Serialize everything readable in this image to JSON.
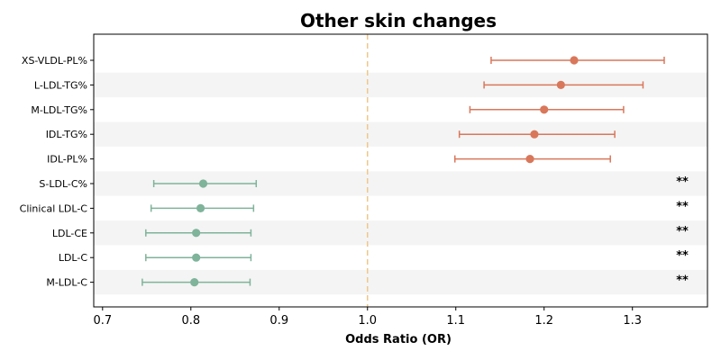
{
  "chart_data": {
    "type": "forest",
    "title": "Other skin changes",
    "xlabel": "Odds Ratio (OR)",
    "ylabel": "",
    "xlim": [
      0.69,
      1.385
    ],
    "xticks": [
      "0.7",
      "0.8",
      "0.9",
      "1.0",
      "1.1",
      "1.2",
      "1.3"
    ],
    "reference_line": 1.0,
    "colors": {
      "positive": "#d9775b",
      "negative": "#7fb39a",
      "reference": "#f0c78a",
      "band": "#f4f4f4"
    },
    "rows": [
      {
        "label": "XS-VLDL-PL%",
        "or": 1.234,
        "lo": 1.14,
        "hi": 1.336,
        "sig": ""
      },
      {
        "label": "L-LDL-TG%",
        "or": 1.219,
        "lo": 1.132,
        "hi": 1.312,
        "sig": ""
      },
      {
        "label": "M-LDL-TG%",
        "or": 1.2,
        "lo": 1.116,
        "hi": 1.29,
        "sig": ""
      },
      {
        "label": "IDL-TG%",
        "or": 1.189,
        "lo": 1.104,
        "hi": 1.28,
        "sig": ""
      },
      {
        "label": "IDL-PL%",
        "or": 1.184,
        "lo": 1.099,
        "hi": 1.275,
        "sig": ""
      },
      {
        "label": "S-LDL-C%",
        "or": 0.814,
        "lo": 0.758,
        "hi": 0.874,
        "sig": "**"
      },
      {
        "label": "Clinical LDL-C",
        "or": 0.811,
        "lo": 0.755,
        "hi": 0.871,
        "sig": "**"
      },
      {
        "label": "LDL-CE",
        "or": 0.806,
        "lo": 0.749,
        "hi": 0.868,
        "sig": "**"
      },
      {
        "label": "LDL-C",
        "or": 0.806,
        "lo": 0.749,
        "hi": 0.868,
        "sig": "**"
      },
      {
        "label": "M-LDL-C",
        "or": 0.804,
        "lo": 0.745,
        "hi": 0.867,
        "sig": "**"
      }
    ]
  }
}
